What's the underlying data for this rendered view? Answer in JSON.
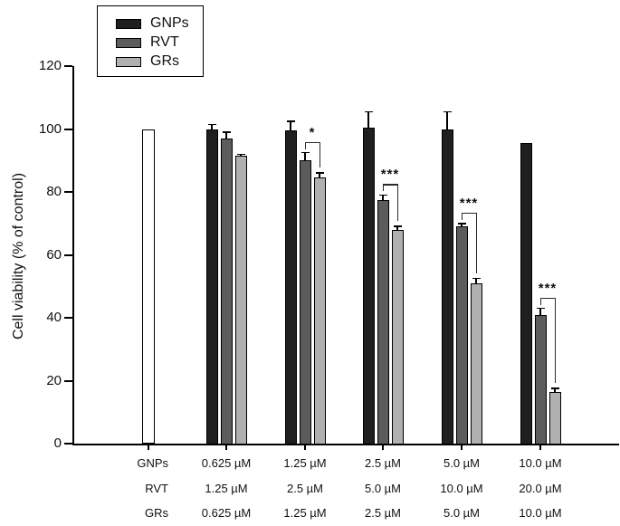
{
  "chart_data": {
    "type": "bar",
    "title": "",
    "ylabel": "Cell viability (% of control)",
    "xlabel": "",
    "ylim": [
      0,
      120
    ],
    "y_ticks": [
      0,
      20,
      40,
      60,
      80,
      100,
      120
    ],
    "grid": false,
    "legend_position": "top-left",
    "control_bar": {
      "value": 100,
      "error": 0,
      "fill": "#ffffff"
    },
    "series": [
      {
        "name": "GNPs",
        "color": "#1f1f1f",
        "values": [
          100,
          99.5,
          100.5,
          100,
          95.5
        ],
        "errors": [
          1.5,
          3,
          5,
          5.5,
          0
        ]
      },
      {
        "name": "RVT",
        "color": "#5c5c5c",
        "values": [
          97,
          90,
          77.5,
          69,
          41
        ],
        "errors": [
          2,
          2.5,
          1.5,
          1,
          2
        ]
      },
      {
        "name": "GRs",
        "color": "#b0b0b0",
        "values": [
          91.5,
          84.5,
          68,
          51,
          16.5
        ],
        "errors": [
          0.5,
          1.5,
          1,
          1.5,
          1
        ]
      }
    ],
    "categories_rows": [
      {
        "header": "GNPs",
        "values": [
          "0.625 µM",
          "1.25 µM",
          "2.5 µM",
          "5.0 µM",
          "10.0 µM"
        ]
      },
      {
        "header": "RVT",
        "values": [
          "1.25 µM",
          "2.5 µM",
          "5.0 µM",
          "10.0 µM",
          "20.0 µM"
        ]
      },
      {
        "header": "GRs",
        "values": [
          "0.625 µM",
          "1.25 µM",
          "2.5 µM",
          "5.0 µM",
          "10.0 µM"
        ]
      }
    ],
    "significance": [
      {
        "group_index": 1,
        "label": "*",
        "between": [
          "RVT",
          "GRs"
        ]
      },
      {
        "group_index": 2,
        "label": "***",
        "between": [
          "RVT",
          "GRs"
        ]
      },
      {
        "group_index": 3,
        "label": "***",
        "between": [
          "RVT",
          "GRs"
        ]
      },
      {
        "group_index": 4,
        "label": "***",
        "between": [
          "RVT",
          "GRs"
        ]
      }
    ]
  }
}
